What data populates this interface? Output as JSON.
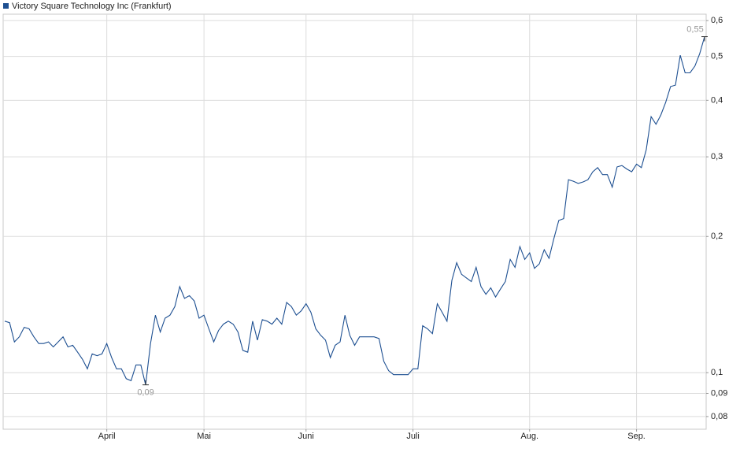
{
  "chart_data": {
    "type": "line",
    "log_scale": true,
    "grid": true,
    "legend": "top-left",
    "categories": [
      null,
      null,
      null,
      null,
      null,
      null,
      null,
      null,
      null,
      null,
      null,
      null,
      null,
      null,
      null,
      null,
      null,
      null,
      null,
      null,
      null,
      "April",
      null,
      null,
      null,
      null,
      null,
      null,
      null,
      null,
      null,
      null,
      null,
      null,
      null,
      null,
      null,
      null,
      null,
      null,
      null,
      "Mai",
      null,
      null,
      null,
      null,
      null,
      null,
      null,
      null,
      null,
      null,
      null,
      null,
      null,
      null,
      null,
      null,
      null,
      null,
      null,
      null,
      "Juni",
      null,
      null,
      null,
      null,
      null,
      null,
      null,
      null,
      null,
      null,
      null,
      null,
      null,
      null,
      null,
      null,
      null,
      null,
      null,
      null,
      null,
      "Juli",
      null,
      null,
      null,
      null,
      null,
      null,
      null,
      null,
      null,
      null,
      null,
      null,
      null,
      null,
      null,
      null,
      null,
      null,
      null,
      null,
      null,
      null,
      null,
      "Aug.",
      null,
      null,
      null,
      null,
      null,
      null,
      null,
      null,
      null,
      null,
      null,
      null,
      null,
      null,
      null,
      null,
      null,
      null,
      null,
      null,
      null,
      "Sep.",
      null,
      null,
      null,
      null,
      null,
      null,
      null,
      null,
      null,
      null,
      null,
      null,
      null,
      null
    ],
    "series": [
      {
        "name": "Victory Square Technology Inc (Frankfurt)",
        "color": "#1d4f91",
        "values": [
          0.13,
          0.129,
          0.117,
          0.12,
          0.126,
          0.125,
          0.12,
          0.116,
          0.116,
          0.117,
          0.114,
          0.117,
          0.12,
          0.114,
          0.115,
          0.111,
          0.107,
          0.102,
          0.11,
          0.109,
          0.11,
          0.116,
          0.108,
          0.102,
          0.102,
          0.097,
          0.096,
          0.104,
          0.104,
          0.094,
          0.116,
          0.134,
          0.123,
          0.132,
          0.134,
          0.14,
          0.155,
          0.146,
          0.148,
          0.144,
          0.132,
          0.134,
          0.125,
          0.117,
          0.124,
          0.128,
          0.13,
          0.128,
          0.123,
          0.112,
          0.111,
          0.13,
          0.118,
          0.131,
          0.13,
          0.128,
          0.132,
          0.128,
          0.143,
          0.14,
          0.134,
          0.137,
          0.142,
          0.136,
          0.125,
          0.121,
          0.118,
          0.108,
          0.115,
          0.117,
          0.134,
          0.121,
          0.115,
          0.12,
          0.12,
          0.12,
          0.12,
          0.119,
          0.106,
          0.101,
          0.099,
          0.099,
          0.099,
          0.099,
          0.102,
          0.102,
          0.127,
          0.125,
          0.122,
          0.142,
          0.136,
          0.13,
          0.16,
          0.175,
          0.165,
          0.162,
          0.159,
          0.171,
          0.155,
          0.149,
          0.154,
          0.147,
          0.153,
          0.159,
          0.178,
          0.171,
          0.19,
          0.178,
          0.184,
          0.17,
          0.174,
          0.187,
          0.179,
          0.198,
          0.217,
          0.219,
          0.267,
          0.265,
          0.262,
          0.264,
          0.267,
          0.278,
          0.284,
          0.274,
          0.274,
          0.257,
          0.285,
          0.287,
          0.282,
          0.278,
          0.289,
          0.284,
          0.311,
          0.368,
          0.354,
          0.371,
          0.396,
          0.429,
          0.432,
          0.503,
          0.46,
          0.46,
          0.476,
          0.507,
          0.553
        ],
        "value_labels": [
          null,
          null,
          null,
          null,
          null,
          null,
          null,
          null,
          null,
          null,
          null,
          null,
          null,
          null,
          null,
          null,
          null,
          null,
          null,
          null,
          null,
          null,
          null,
          null,
          null,
          null,
          null,
          null,
          null,
          "0,09",
          null,
          null,
          null,
          null,
          null,
          null,
          null,
          null,
          null,
          null,
          null,
          null,
          null,
          null,
          null,
          null,
          null,
          null,
          null,
          null,
          null,
          null,
          null,
          null,
          null,
          null,
          null,
          null,
          null,
          null,
          null,
          null,
          null,
          null,
          null,
          null,
          null,
          null,
          null,
          null,
          null,
          null,
          null,
          null,
          null,
          null,
          null,
          null,
          null,
          null,
          null,
          null,
          null,
          null,
          null,
          null,
          null,
          null,
          null,
          null,
          null,
          null,
          null,
          null,
          null,
          null,
          null,
          null,
          null,
          null,
          null,
          null,
          null,
          null,
          null,
          null,
          null,
          null,
          null,
          null,
          null,
          null,
          null,
          null,
          null,
          null,
          null,
          null,
          null,
          null,
          null,
          null,
          null,
          null,
          null,
          null,
          null,
          null,
          null,
          null,
          null,
          null,
          null,
          null,
          null,
          null,
          null,
          null,
          null,
          null,
          null,
          null,
          null,
          null,
          "0,55"
        ]
      }
    ],
    "ylim": [
      0.075,
      0.62
    ],
    "yticks": [
      {
        "value": 0.6,
        "label": "0,6"
      },
      {
        "value": 0.5,
        "label": "0,5"
      },
      {
        "value": 0.4,
        "label": "0,4"
      },
      {
        "value": 0.3,
        "label": "0,3"
      },
      {
        "value": 0.2,
        "label": "0,2"
      },
      {
        "value": 0.1,
        "label": "0,1"
      },
      {
        "value": 0.09,
        "label": "0,09"
      },
      {
        "value": 0.08,
        "label": "0,08"
      }
    ]
  }
}
